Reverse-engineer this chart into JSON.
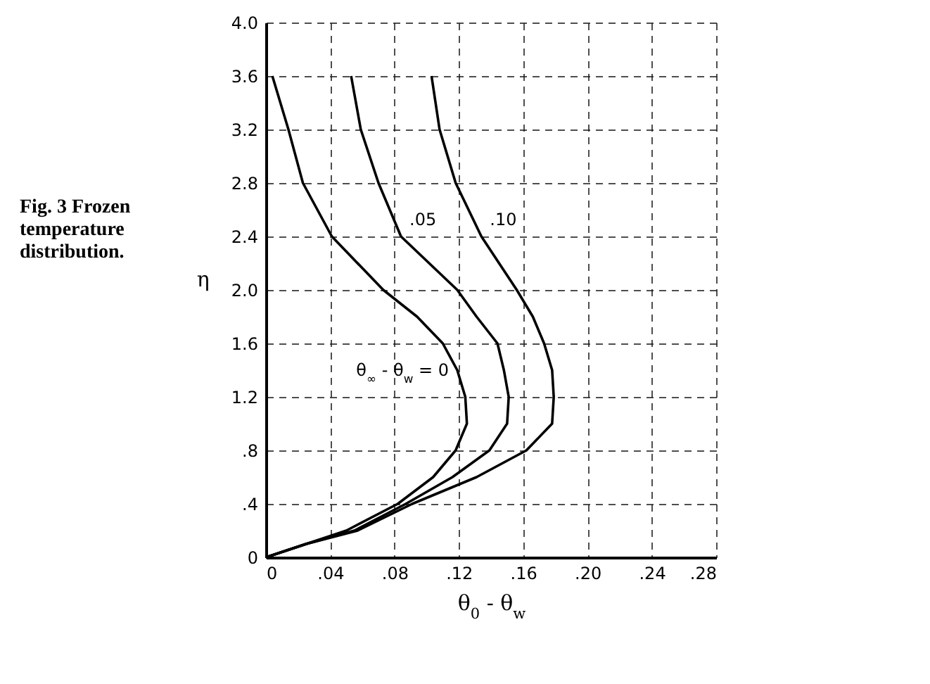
{
  "chart_data": {
    "type": "line",
    "title": "Fig. 3  Frozen temperature distribution.",
    "xlabel": "θ$_{0}$ - θ$_{w}$",
    "ylabel": "η",
    "xlim": [
      0,
      0.28
    ],
    "ylim": [
      0,
      4.0
    ],
    "xticks": [
      0,
      {
        "value": 0.04,
        "label": ".04"
      },
      {
        "value": 0.08,
        "label": ".08"
      },
      {
        "value": 0.12,
        "label": ".12"
      },
      {
        "value": 0.16,
        "label": ".16"
      },
      {
        "value": 0.2,
        "label": ".20"
      },
      {
        "value": 0.24,
        "label": ".24"
      },
      {
        "value": 0.28,
        "label": ".28"
      }
    ],
    "yticks": [
      0,
      {
        "value": 0.4,
        "label": ".4"
      },
      {
        "value": 0.8,
        "label": ".8"
      },
      1.2,
      1.6,
      {
        "value": 2,
        "label": "2.0"
      },
      2.4,
      2.8,
      3.2,
      3.6,
      {
        "value": 4,
        "label": "4.0"
      }
    ],
    "grid": true,
    "series": [
      {
        "name": "θ$_{∞}$ - θ$_{w}$ = 0",
        "color": "#000000",
        "x": [
          0,
          0.025,
          0.05,
          0.082,
          0.104,
          0.118,
          0.125,
          0.124,
          0.119,
          0.11,
          0.094,
          0.073,
          0.041,
          0.023,
          0.014,
          0.004
        ],
        "values": [
          0,
          0.1,
          0.2,
          0.4,
          0.6,
          0.8,
          1.0,
          1.2,
          1.4,
          1.6,
          1.8,
          2.0,
          2.4,
          2.8,
          3.2,
          3.6
        ]
      },
      {
        "name": ".05",
        "color": "#000000",
        "x": [
          0,
          0.025,
          0.055,
          0.087,
          0.116,
          0.139,
          0.15,
          0.151,
          0.148,
          0.144,
          0.131,
          0.119,
          0.084,
          0.07,
          0.059,
          0.053
        ],
        "values": [
          0,
          0.1,
          0.2,
          0.4,
          0.6,
          0.8,
          1.0,
          1.2,
          1.4,
          1.6,
          1.8,
          2.0,
          2.4,
          2.8,
          3.2,
          3.6
        ]
      },
      {
        "name": ".10",
        "color": "#000000",
        "x": [
          0,
          0.025,
          0.057,
          0.091,
          0.131,
          0.162,
          0.178,
          0.179,
          0.178,
          0.173,
          0.166,
          0.156,
          0.134,
          0.118,
          0.108,
          0.103
        ],
        "values": [
          0,
          0.1,
          0.2,
          0.4,
          0.6,
          0.8,
          1.0,
          1.2,
          1.4,
          1.6,
          1.8,
          2.0,
          2.4,
          2.8,
          3.2,
          3.6
        ]
      }
    ]
  }
}
